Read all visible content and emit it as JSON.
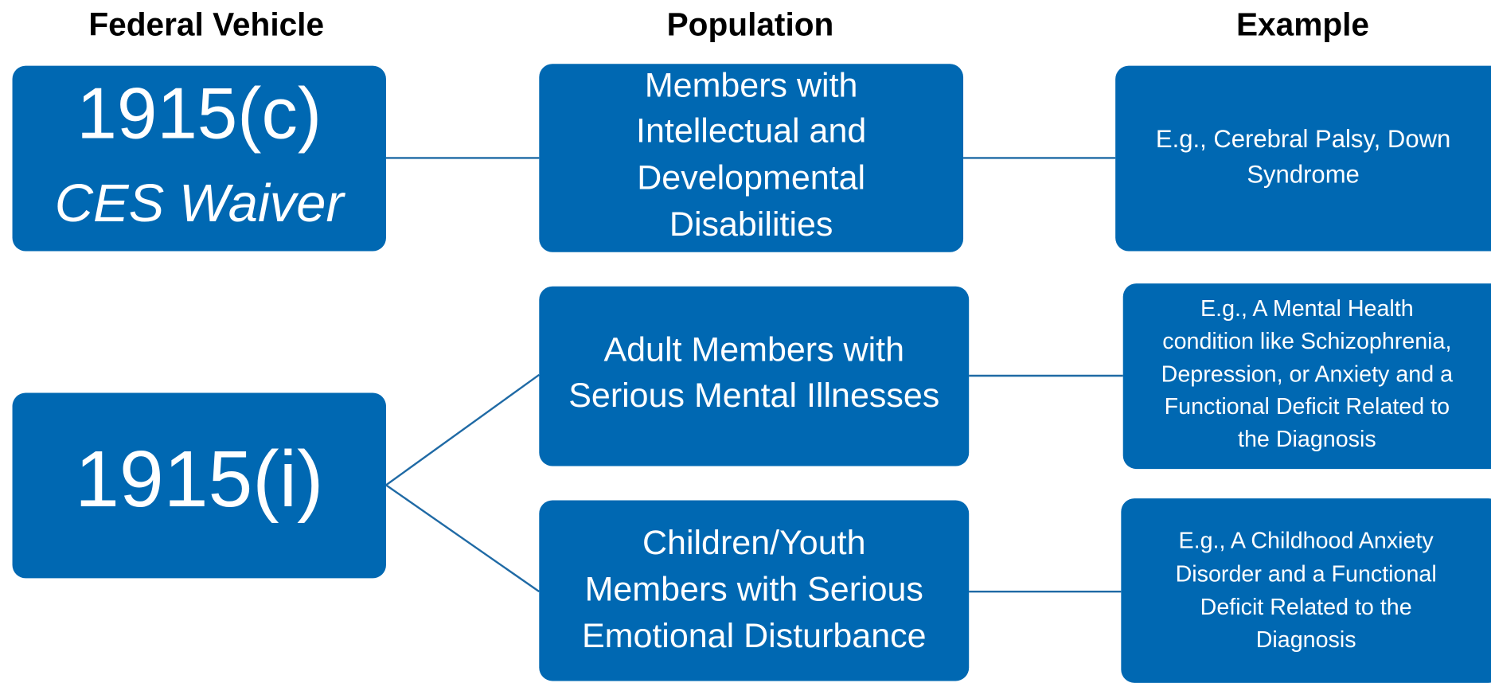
{
  "headers": [
    "Federal Vehicle",
    "Population",
    "Example"
  ],
  "nodes": [
    {
      "lines": [
        "1915(c)",
        "CES Waiver"
      ]
    },
    {
      "lines": [
        "Members with",
        "Intellectual and",
        "Developmental",
        "Disabilities"
      ]
    },
    {
      "lines": [
        "E.g., Cerebral Palsy, Down",
        "Syndrome"
      ]
    },
    {
      "lines": [
        "1915(i)"
      ]
    },
    {
      "lines": [
        "Adult Members with",
        "Serious Mental Illnesses"
      ]
    },
    {
      "lines": [
        "E.g., A Mental Health",
        "condition like Schizophrenia,",
        "Depression, or Anxiety and a",
        "Functional Deficit Related to",
        "the Diagnosis"
      ]
    },
    {
      "lines": [
        "Children/Youth",
        "Members with Serious",
        "Emotional Disturbance"
      ]
    },
    {
      "lines": [
        "E.g., A Childhood Anxiety",
        "Disorder and a Functional",
        "Deficit Related to the",
        "Diagnosis"
      ]
    }
  ]
}
